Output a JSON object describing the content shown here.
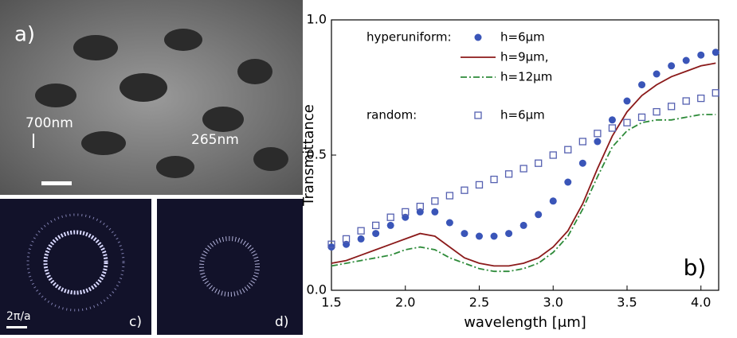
{
  "panels": {
    "a": {
      "label": "a)",
      "scale1": "700nm",
      "scale2": "265nm"
    },
    "c": {
      "label": "c)",
      "scale": "2π/a"
    },
    "d": {
      "label": "d)"
    }
  },
  "chart_data": {
    "type": "line",
    "x_label": "wavelength [μm]",
    "y_label": "Transmittance",
    "annotations": [
      "hyperuniform:",
      "random:",
      "b)"
    ],
    "x": [
      1.5,
      1.6,
      1.7,
      1.8,
      1.9,
      2.0,
      2.1,
      2.2,
      2.3,
      2.4,
      2.5,
      2.6,
      2.7,
      2.8,
      2.9,
      3.0,
      3.1,
      3.2,
      3.3,
      3.4,
      3.5,
      3.6,
      3.7,
      3.8,
      3.9,
      4.0,
      4.1
    ],
    "series": [
      {
        "name": "h=6μm",
        "color": "#3a55b8",
        "marker": "circle",
        "values": [
          0.16,
          0.17,
          0.19,
          0.21,
          0.24,
          0.27,
          0.29,
          0.29,
          0.25,
          0.21,
          0.2,
          0.2,
          0.21,
          0.24,
          0.28,
          0.33,
          0.4,
          0.47,
          0.55,
          0.63,
          0.7,
          0.76,
          0.8,
          0.83,
          0.85,
          0.87,
          0.88
        ]
      },
      {
        "name": "h=9μm,",
        "color": "#8b1a1a",
        "line_style": "solid",
        "values": [
          0.1,
          0.11,
          0.13,
          0.15,
          0.17,
          0.19,
          0.21,
          0.2,
          0.16,
          0.12,
          0.1,
          0.09,
          0.09,
          0.1,
          0.12,
          0.16,
          0.22,
          0.32,
          0.45,
          0.57,
          0.66,
          0.72,
          0.76,
          0.79,
          0.81,
          0.83,
          0.84
        ]
      },
      {
        "name": "h=12μm",
        "color": "#2e8b3a",
        "line_style": "dashdot",
        "values": [
          0.09,
          0.1,
          0.11,
          0.12,
          0.13,
          0.15,
          0.16,
          0.15,
          0.12,
          0.1,
          0.08,
          0.07,
          0.07,
          0.08,
          0.1,
          0.14,
          0.2,
          0.3,
          0.42,
          0.53,
          0.59,
          0.62,
          0.63,
          0.63,
          0.64,
          0.65,
          0.65
        ]
      },
      {
        "name": "h=6μm",
        "color": "#5560b0",
        "marker": "square",
        "values": [
          0.17,
          0.19,
          0.22,
          0.24,
          0.27,
          0.29,
          0.31,
          0.33,
          0.35,
          0.37,
          0.39,
          0.41,
          0.43,
          0.45,
          0.47,
          0.5,
          0.52,
          0.55,
          0.58,
          0.6,
          0.62,
          0.64,
          0.66,
          0.68,
          0.7,
          0.71,
          0.73
        ]
      }
    ],
    "xlim": [
      1.5,
      4.12
    ],
    "xticks": [
      1.5,
      {
        "value": 2,
        "label": "2.0"
      },
      2.5,
      {
        "value": 3,
        "label": "3.0"
      },
      3.5,
      {
        "value": 4,
        "label": "4.0"
      }
    ],
    "ylim": [
      0,
      1.0
    ],
    "yticks": [
      {
        "value": 0,
        "label": "0.0"
      },
      0.5,
      {
        "value": 1,
        "label": "1.0"
      }
    ]
  }
}
